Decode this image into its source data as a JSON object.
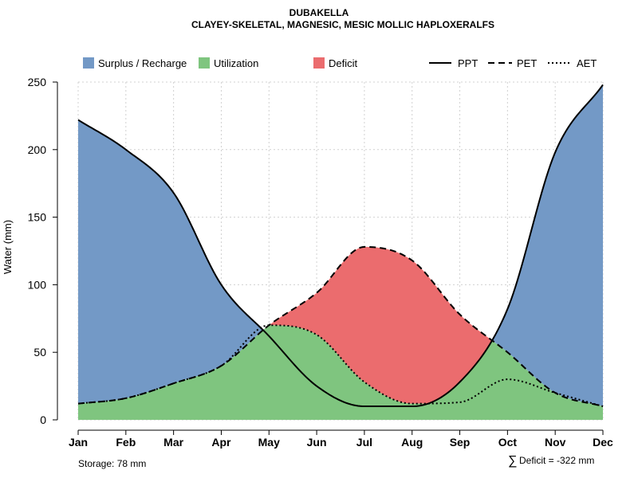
{
  "chart_data": {
    "type": "area",
    "title": "DUBAKELLA",
    "subtitle": "CLAYEY-SKELETAL, MAGNESIC, MESIC MOLLIC HAPLOXERALFS",
    "ylabel": "Water (mm)",
    "xlabel": "",
    "ylim": [
      0,
      250
    ],
    "yticks": [
      0,
      50,
      100,
      150,
      200,
      250
    ],
    "grid": true,
    "legend_position": "top",
    "categories": [
      "Jan",
      "Feb",
      "Mar",
      "Apr",
      "May",
      "Jun",
      "Jul",
      "Aug",
      "Sep",
      "Oct",
      "Nov",
      "Dec"
    ],
    "series": [
      {
        "name": "PPT",
        "style": "solid",
        "values": [
          222,
          200,
          168,
          100,
          62,
          25,
          10,
          10,
          28,
          82,
          198,
          248
        ]
      },
      {
        "name": "PET",
        "style": "dashed",
        "values": [
          12,
          16,
          27,
          40,
          70,
          94,
          128,
          118,
          78,
          50,
          20,
          10
        ]
      },
      {
        "name": "AET",
        "style": "dotted",
        "values": [
          12,
          16,
          27,
          40,
          70,
          63,
          28,
          12,
          13,
          30,
          20,
          10
        ]
      }
    ],
    "areas": [
      {
        "name": "Surplus / Recharge",
        "color": "#7399c6"
      },
      {
        "name": "Utilization",
        "color": "#7fc57f"
      },
      {
        "name": "Deficit",
        "color": "#eb6c6e"
      }
    ],
    "annotations": {
      "storage": "Storage: 78 mm",
      "deficit_symbol": "∑",
      "deficit": "Deficit = -322 mm"
    }
  }
}
